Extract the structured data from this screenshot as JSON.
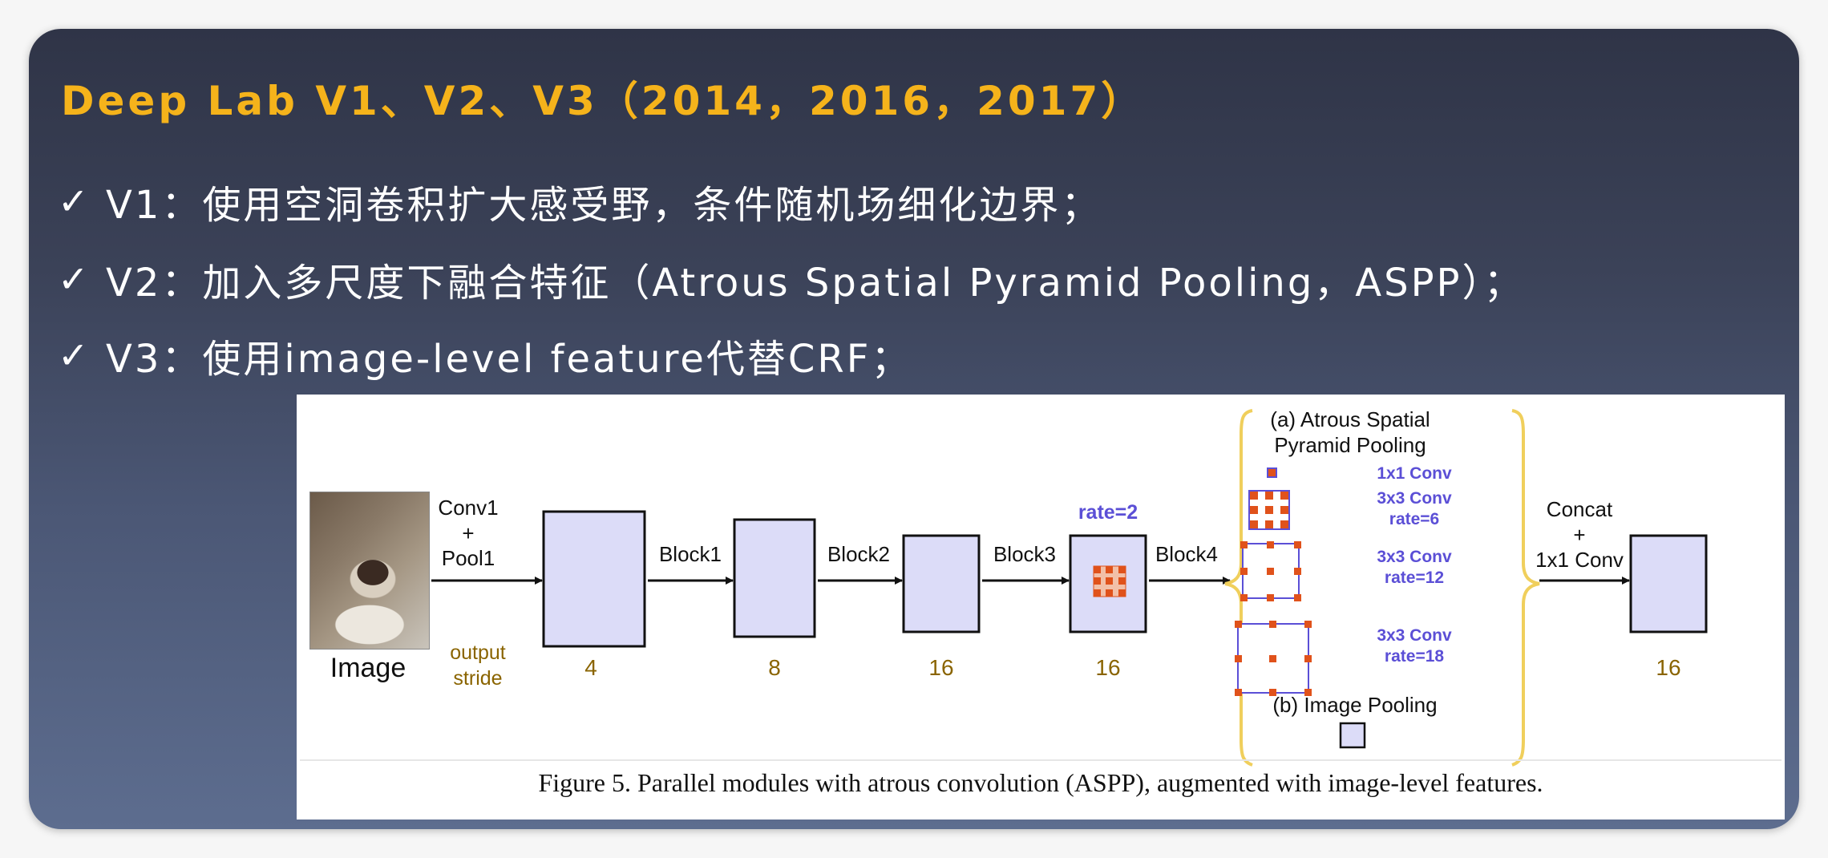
{
  "slide": {
    "title": "Deep Lab V1、V2、V3（2014，2016，2017）",
    "bullets": [
      {
        "mark": "✓",
        "text": "V1：使用空洞卷积扩大感受野，条件随机场细化边界；"
      },
      {
        "mark": "✓",
        "text": "V2：加入多尺度下融合特征（Atrous Spatial Pyramid Pooling，ASPP）；"
      },
      {
        "mark": "✓",
        "text": "V3：使用image-level feature代替CRF；"
      }
    ]
  },
  "figure": {
    "image_label": "Image",
    "conv1": "Conv1",
    "plus": "+",
    "pool1": "Pool1",
    "output": "output",
    "stride": "stride",
    "blocks": [
      "Block1",
      "Block2",
      "Block3",
      "Block4"
    ],
    "strides": [
      "4",
      "8",
      "16",
      "16",
      "16"
    ],
    "rate_label": "rate=2",
    "aspp_title_1": "(a) Atrous Spatial",
    "aspp_title_2": "Pyramid Pooling",
    "aspp_convs": [
      {
        "name": "1x1 Conv",
        "rate": ""
      },
      {
        "name": "3x3 Conv",
        "rate": "rate=6"
      },
      {
        "name": "3x3 Conv",
        "rate": "rate=12"
      },
      {
        "name": "3x3 Conv",
        "rate": "rate=18"
      }
    ],
    "image_pooling": "(b) Image Pooling",
    "concat": "Concat",
    "concat_plus": "+",
    "concat_conv": "1x1 Conv",
    "caption": "Figure 5. Parallel modules with atrous convolution (ASPP), augmented with image-level features.",
    "colors": {
      "block_fill": "#dcdcf8",
      "accent_blue": "#5b4fd6",
      "kernel_orange": "#e0521b",
      "stride_brown": "#8a6400",
      "brace_yellow": "#f0cf5c"
    },
    "icons": [
      "cat-photo",
      "arrow-right-icon",
      "brace-icon"
    ]
  }
}
